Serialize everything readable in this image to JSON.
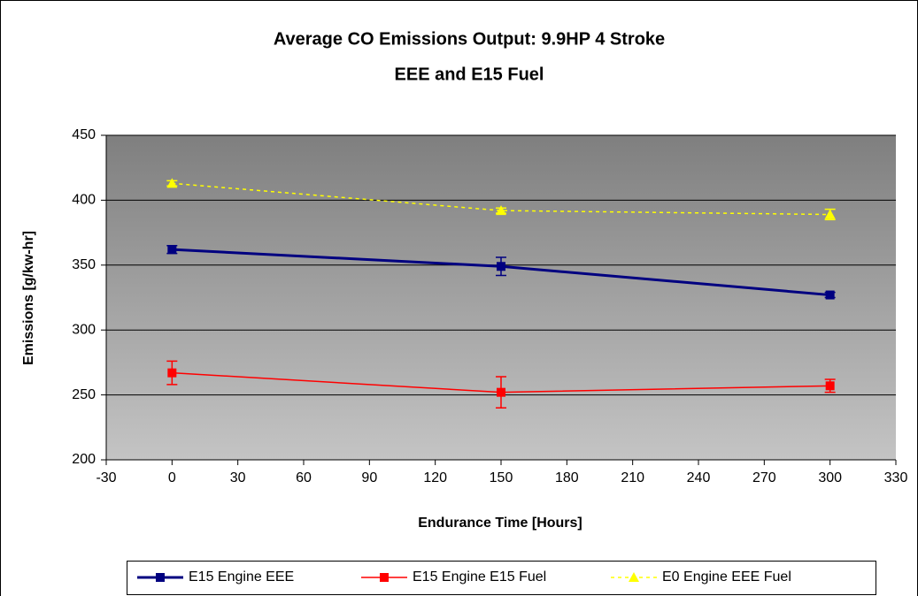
{
  "chart_data": {
    "type": "line",
    "title": [
      "Average CO Emissions Output: 9.9HP 4 Stroke",
      "EEE and E15 Fuel"
    ],
    "xlabel": "Endurance Time [Hours]",
    "ylabel": "Emissions [g/kw-hr]",
    "x": [
      0,
      150,
      300
    ],
    "series": [
      {
        "name": "E15 Engine EEE",
        "color": "#000080",
        "marker": "square",
        "dash": false,
        "width": 3,
        "values": [
          362,
          349,
          327
        ],
        "errors": [
          3,
          7,
          2
        ]
      },
      {
        "name": "E15 Engine E15 Fuel",
        "color": "#ff0000",
        "marker": "square",
        "dash": false,
        "width": 1.5,
        "values": [
          267,
          252,
          257
        ],
        "errors": [
          9,
          12,
          5
        ]
      },
      {
        "name": "E0 Engine EEE Fuel",
        "color": "#ffff00",
        "marker": "triangle",
        "dash": true,
        "width": 1.5,
        "values": [
          413,
          392,
          389
        ],
        "errors": [
          2,
          2,
          4
        ]
      }
    ],
    "xlim": [
      -30,
      330
    ],
    "xticks": [
      -30,
      0,
      30,
      60,
      90,
      120,
      150,
      180,
      210,
      240,
      270,
      300,
      330
    ],
    "ylim": [
      200,
      450
    ],
    "yticks": [
      200,
      250,
      300,
      350,
      400,
      450
    ],
    "grid": true,
    "legend": "bottom"
  }
}
